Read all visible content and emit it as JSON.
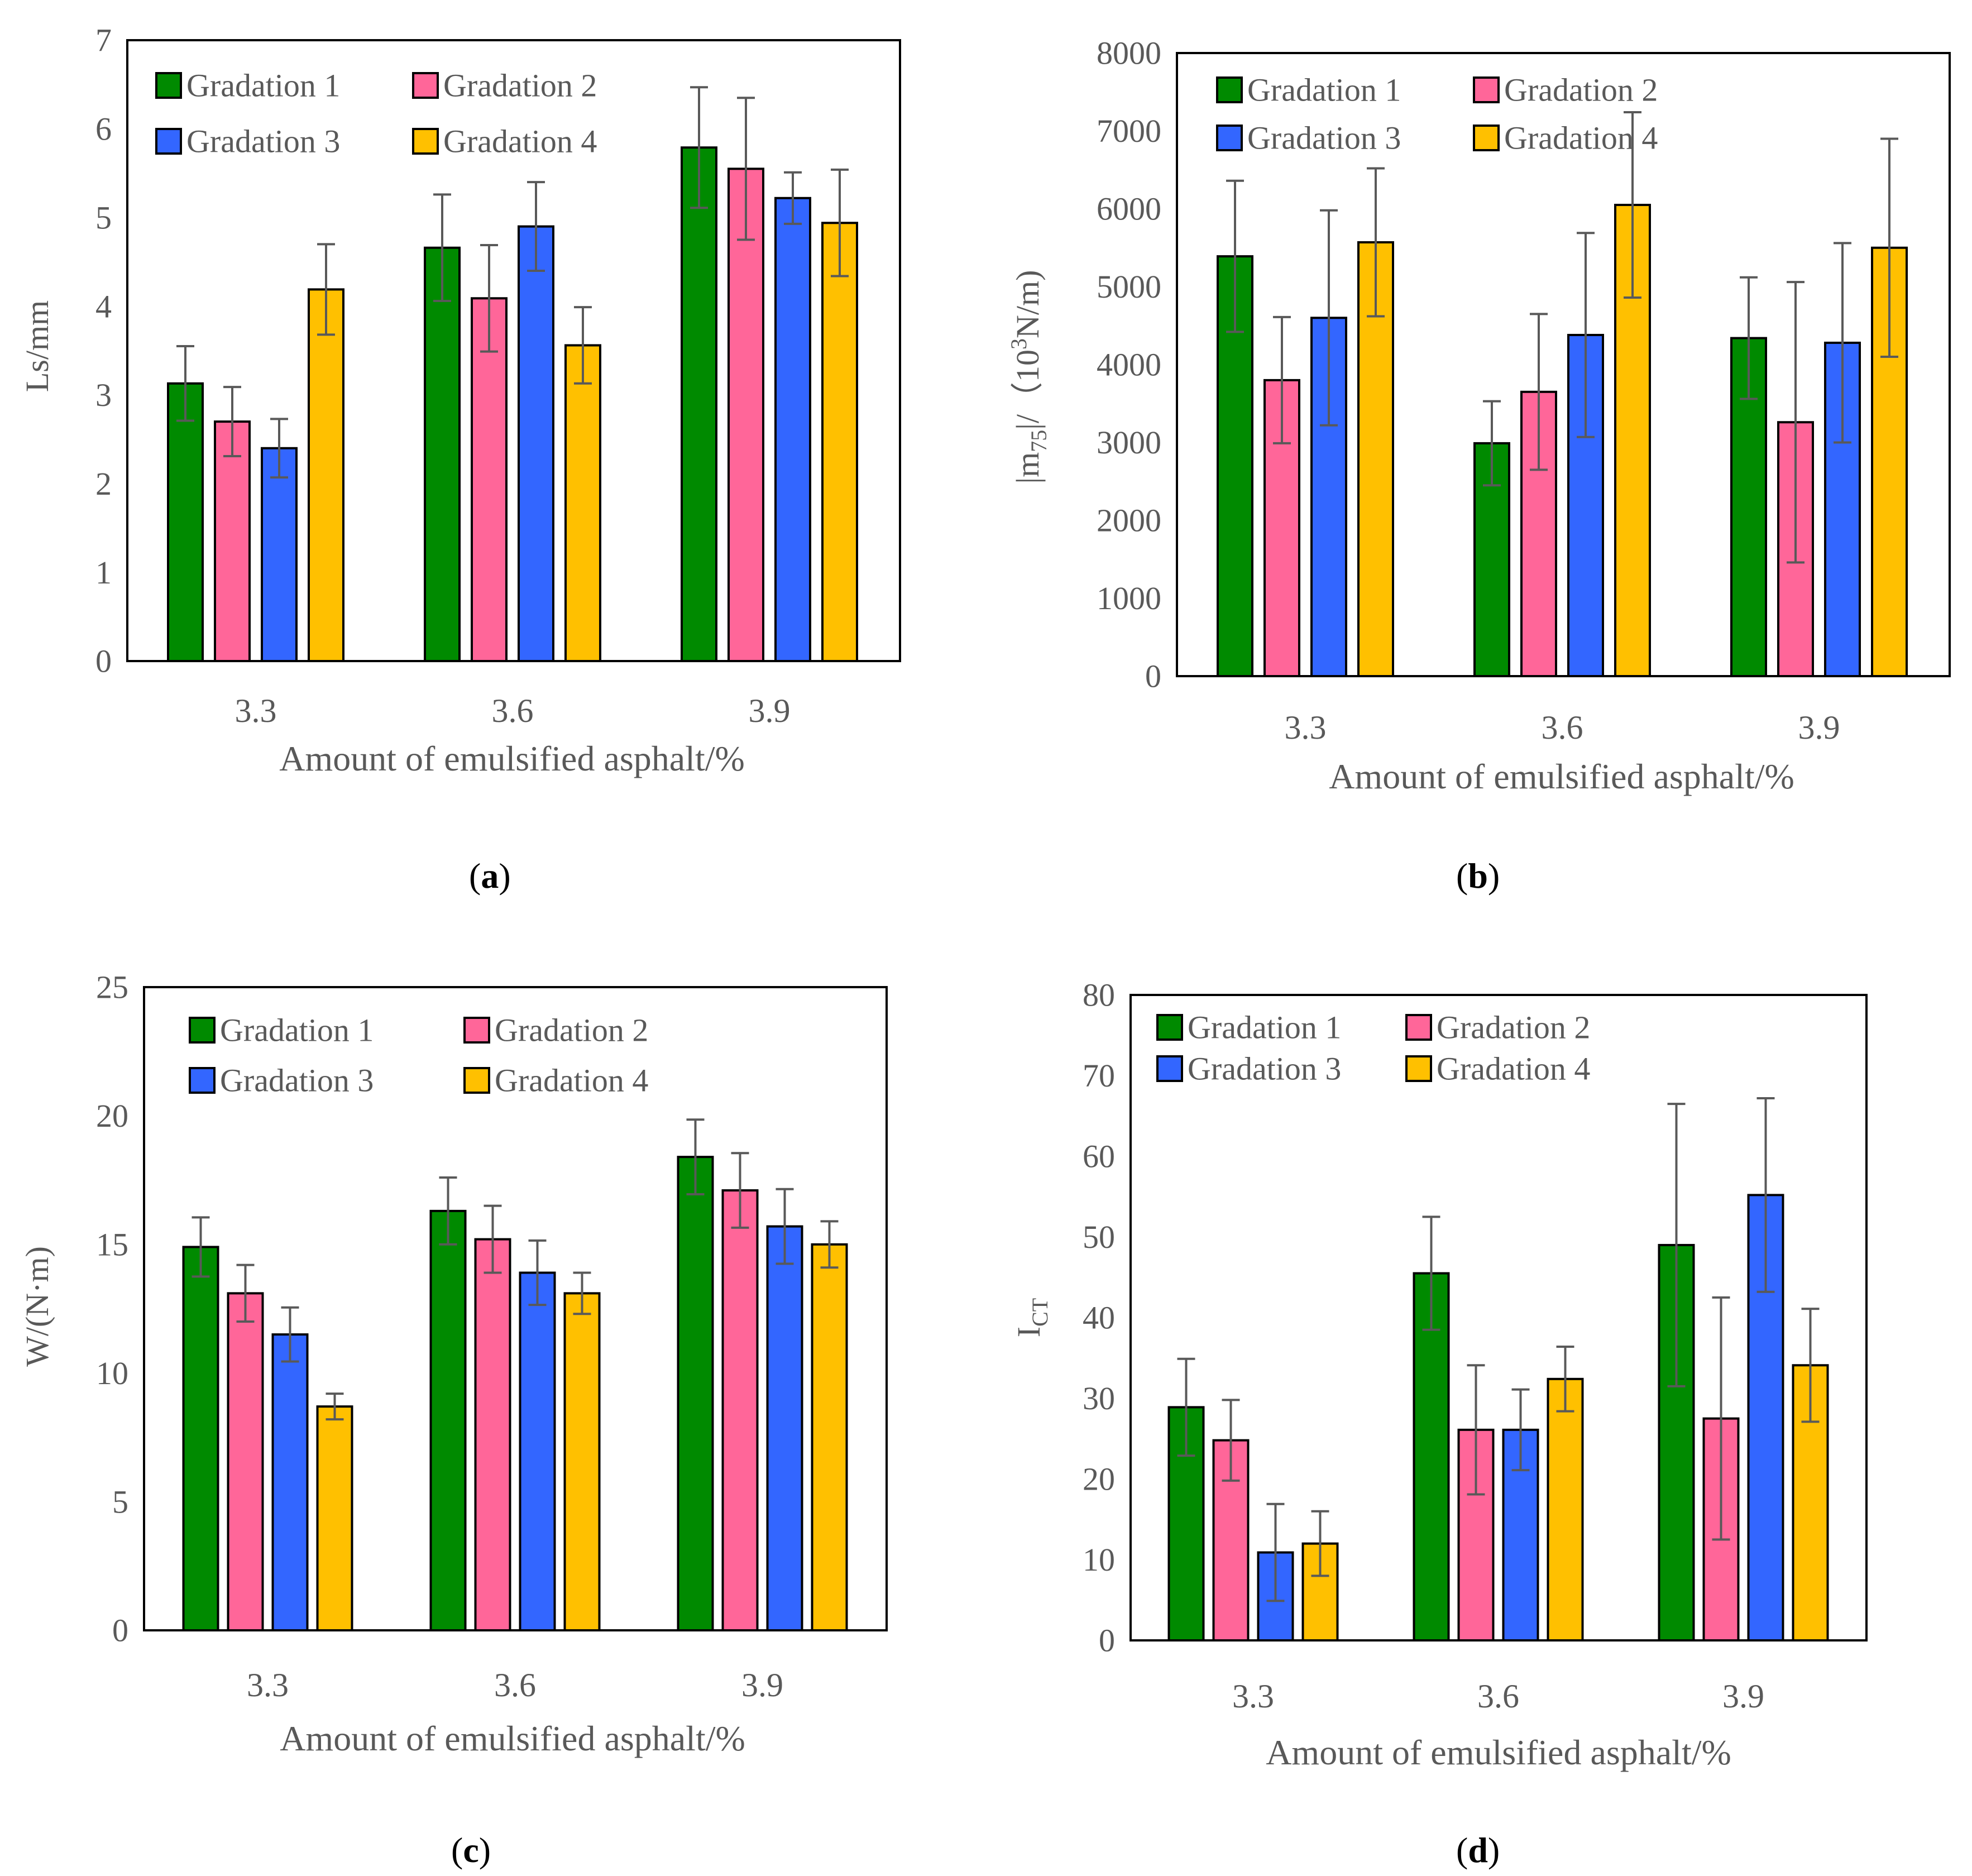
{
  "colors": {
    "Gradation 1": "#008a00",
    "Gradation 2": "#ff6699",
    "Gradation 3": "#3366ff",
    "Gradation 4": "#ffc000",
    "axis": "#000000",
    "text": "#595959",
    "error_bar": "#595959"
  },
  "chart_data": [
    {
      "panel_label": "a",
      "type": "bar",
      "title": "",
      "xlabel": "Amount of emulsified asphalt/%",
      "ylabel": "Ls/mm",
      "ylabel_parts": null,
      "categories": [
        "3.3",
        "3.6",
        "3.9"
      ],
      "ylim": [
        0,
        7
      ],
      "yticks": [
        "0",
        "1",
        "2",
        "3",
        "4",
        "5",
        "6",
        "7"
      ],
      "grid": false,
      "legend_position": "top-left",
      "legend_columns": 2,
      "series": [
        {
          "name": "Gradation 1",
          "values": [
            3.13,
            4.66,
            5.79
          ],
          "errors": [
            0.42,
            0.6,
            0.68
          ]
        },
        {
          "name": "Gradation 2",
          "values": [
            2.7,
            4.09,
            5.55
          ],
          "errors": [
            0.39,
            0.6,
            0.8
          ]
        },
        {
          "name": "Gradation 3",
          "values": [
            2.4,
            4.9,
            5.22
          ],
          "errors": [
            0.33,
            0.5,
            0.29
          ]
        },
        {
          "name": "Gradation 4",
          "values": [
            4.19,
            3.56,
            4.94
          ],
          "errors": [
            0.51,
            0.43,
            0.6
          ]
        }
      ]
    },
    {
      "panel_label": "b",
      "type": "bar",
      "title": "",
      "xlabel": "Amount of emulsified asphalt/%",
      "ylabel": "|m75|/（103N/m)",
      "ylabel_parts": [
        "|m",
        "75",
        "|/（10",
        "3",
        "N/m)"
      ],
      "categories": [
        "3.3",
        "3.6",
        "3.9"
      ],
      "ylim": [
        0,
        8000
      ],
      "yticks": [
        "0",
        "1000",
        "2000",
        "3000",
        "4000",
        "5000",
        "6000",
        "7000",
        "8000"
      ],
      "grid": false,
      "legend_position": "top-left",
      "legend_columns": 2,
      "series": [
        {
          "name": "Gradation 1",
          "values": [
            5390,
            2990,
            4340
          ],
          "errors": [
            970,
            540,
            780
          ]
        },
        {
          "name": "Gradation 2",
          "values": [
            3800,
            3650,
            3260
          ],
          "errors": [
            810,
            1000,
            1800
          ]
        },
        {
          "name": "Gradation 3",
          "values": [
            4600,
            4380,
            4280
          ],
          "errors": [
            1380,
            1310,
            1280
          ]
        },
        {
          "name": "Gradation 4",
          "values": [
            5570,
            6050,
            5500
          ],
          "errors": [
            950,
            1190,
            1400
          ]
        }
      ]
    },
    {
      "panel_label": "c",
      "type": "bar",
      "title": "",
      "xlabel": "Amount of emulsified asphalt/%",
      "ylabel": "W/(N·m)",
      "ylabel_parts": null,
      "categories": [
        "3.3",
        "3.6",
        "3.9"
      ],
      "ylim": [
        0,
        25
      ],
      "yticks": [
        "0",
        "5",
        "10",
        "15",
        "20",
        "25"
      ],
      "grid": false,
      "legend_position": "top-left",
      "legend_columns": 2,
      "series": [
        {
          "name": "Gradation 1",
          "values": [
            14.9,
            16.3,
            18.4
          ],
          "errors": [
            1.15,
            1.3,
            1.45
          ]
        },
        {
          "name": "Gradation 2",
          "values": [
            13.1,
            15.2,
            17.1
          ],
          "errors": [
            1.1,
            1.3,
            1.45
          ]
        },
        {
          "name": "Gradation 3",
          "values": [
            11.5,
            13.9,
            15.7
          ],
          "errors": [
            1.05,
            1.25,
            1.45
          ]
        },
        {
          "name": "Gradation 4",
          "values": [
            8.7,
            13.1,
            15.0
          ],
          "errors": [
            0.5,
            0.8,
            0.9
          ]
        }
      ]
    },
    {
      "panel_label": "d",
      "type": "bar",
      "title": "",
      "xlabel": "Amount of emulsified asphalt/%",
      "ylabel": "ICT",
      "ylabel_parts": [
        "I",
        "CT"
      ],
      "categories": [
        "3.3",
        "3.6",
        "3.9"
      ],
      "ylim": [
        0,
        80
      ],
      "yticks": [
        "0",
        "10",
        "20",
        "30",
        "40",
        "50",
        "60",
        "70",
        "80"
      ],
      "grid": false,
      "legend_position": "top-left",
      "legend_columns": 2,
      "series": [
        {
          "name": "Gradation 1",
          "values": [
            28.9,
            45.5,
            49.0
          ],
          "errors": [
            6.0,
            7.0,
            17.5
          ]
        },
        {
          "name": "Gradation 2",
          "values": [
            24.8,
            26.1,
            27.5
          ],
          "errors": [
            5.0,
            8.0,
            15.0
          ]
        },
        {
          "name": "Gradation 3",
          "values": [
            10.9,
            26.1,
            55.2
          ],
          "errors": [
            6.0,
            5.0,
            12.0
          ]
        },
        {
          "name": "Gradation 4",
          "values": [
            12.0,
            32.4,
            34.1
          ],
          "errors": [
            4.0,
            4.0,
            7.0
          ]
        }
      ]
    }
  ]
}
